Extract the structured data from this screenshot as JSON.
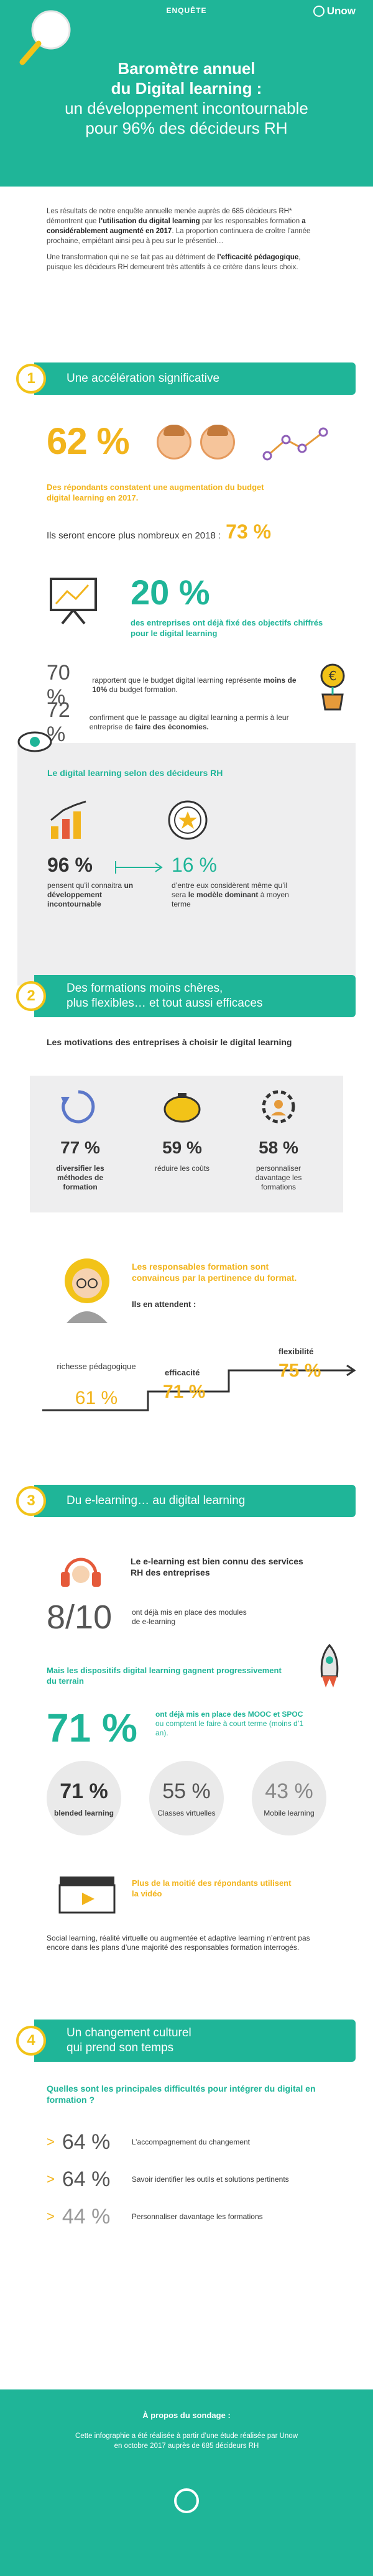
{
  "header": {
    "tag": "ENQUÊTE",
    "brand": "Unow",
    "title_line1": "Baromètre annuel",
    "title_line2": "du Digital learning :",
    "title_line3": "un développement incontournable",
    "title_line4": "pour 96% des décideurs RH"
  },
  "intro": {
    "p1_start": "Les résultats de notre enquête annuelle menée auprès de 685 décideurs RH* démontrent que ",
    "p1_bold1": "l’utilisation du digital learning",
    "p1_mid": " par les responsables formation ",
    "p1_bold2": "a considérablement augmenté en 2017",
    "p1_end": ". La proportion continuera de croître l’année prochaine, empiétant ainsi peu à peu sur le présentiel…",
    "p2_start": "Une transformation qui ne se fait pas au détriment de ",
    "p2_bold": "l’efficacité pédagogique",
    "p2_end": ", puisque les décideurs RH demeurent très attentifs à ce critère dans leurs choix."
  },
  "section1": {
    "number": "1",
    "title": "Une accélération significative",
    "stat1_value": "62 %",
    "stat1_text": "Des répondants constatent une augmentation du budget digital learning en 2017.",
    "stat2_text": "Ils seront encore plus nombreux en 2018 :",
    "stat2_value": "73 %",
    "stat3_value": "20 %",
    "stat3_text": "des entreprises ont déjà fixé des objectifs chiffrés pour le digital learning",
    "stat4_value": "70 %",
    "stat4_text_a": "rapportent que le budget digital learning représente",
    "stat4_bold": "moins de 10%",
    "stat4_text_b": "du budget formation.",
    "stat5_value": "72 %",
    "stat5_text_a": "confirment que le passage au digital learning a permis à leur entreprise de",
    "stat5_bold": "faire des économies.",
    "box_title": "Le digital learning selon des décideurs RH",
    "box_v1": "96 %",
    "box_t1_a": "pensent qu’il connaitra",
    "box_t1_b": "un développement incontournable",
    "box_v2": "16 %",
    "box_t2_a": "d’entre eux considèrent même qu’il sera",
    "box_t2_b": "le modèle dominant",
    "box_t2_c": "à moyen terme"
  },
  "section2": {
    "number": "2",
    "title_l1": "Des formations moins chères,",
    "title_l2": "plus flexibles… et tout aussi efficaces",
    "motiv_title": "Les motivations des entreprises à choisir le digital learning",
    "m1_value": "77 %",
    "m1_label": "diversifier les méthodes de formation",
    "m2_value": "59 %",
    "m2_label": "réduire les coûts",
    "m3_value": "58 %",
    "m3_label": "personnaliser davantage les formations",
    "resp_text": "Les responsables formation sont convaincus par la pertinence du format.",
    "attend": "Ils en attendent :",
    "step1_label": "richesse pédagogique",
    "step1_value": "61 %",
    "step2_label": "efficacité",
    "step2_value": "71 %",
    "step3_label": "flexibilité",
    "step3_value": "75 %"
  },
  "section3": {
    "number": "3",
    "title": "Du e-learning… au digital learning",
    "known_text": "Le e-learning est bien connu des services RH des entreprises",
    "ratio_value": "8/10",
    "ratio_text": "ont déjà mis en place des modules de e-learning",
    "gain_text": "Mais les dispositifs digital learning gagnent progressivement du terrain",
    "mooc_value": "71 %",
    "mooc_text_a": "ont déjà mis en place des MOOC et SPOC",
    "mooc_text_b": "ou comptent le faire à court terme (moins d’1 an).",
    "c1_value": "71 %",
    "c1_label": "blended learning",
    "c2_value": "55 %",
    "c2_label": "Classes virtuelles",
    "c3_value": "43 %",
    "c3_label": "Mobile learning",
    "video_text": "Plus de la moitié des répondants utilisent la vidéo",
    "social_text_a": "Social learning, réalité virtuelle ou augmentée et adaptive learning",
    "social_text_b": "n’entrent pas encore dans les plans d’une majorité des responsables formation interrogés."
  },
  "section4": {
    "number": "4",
    "title_l1": "Un changement culturel",
    "title_l2": "qui prend son temps",
    "question": "Quelles sont les principales difficultés pour intégrer du digital en formation ?",
    "items": [
      {
        "value": "64 %",
        "label": "L’accompagnement du changement"
      },
      {
        "value": "64 %",
        "label": "Savoir identifier les outils et solutions pertinents"
      },
      {
        "value": "44 %",
        "label": "Personnaliser davantage les formations"
      }
    ]
  },
  "footer": {
    "title": "À propos du sondage :",
    "text_l1": "Cette infographie a été réalisée à partir d’une étude réalisée par Unow",
    "text_l2": "en octobre 2017 auprès de 685 décideurs RH"
  },
  "colors": {
    "teal": "#1fb598",
    "yellow": "#f2b41c",
    "dark": "#333333",
    "grey": "#eeeeef"
  }
}
